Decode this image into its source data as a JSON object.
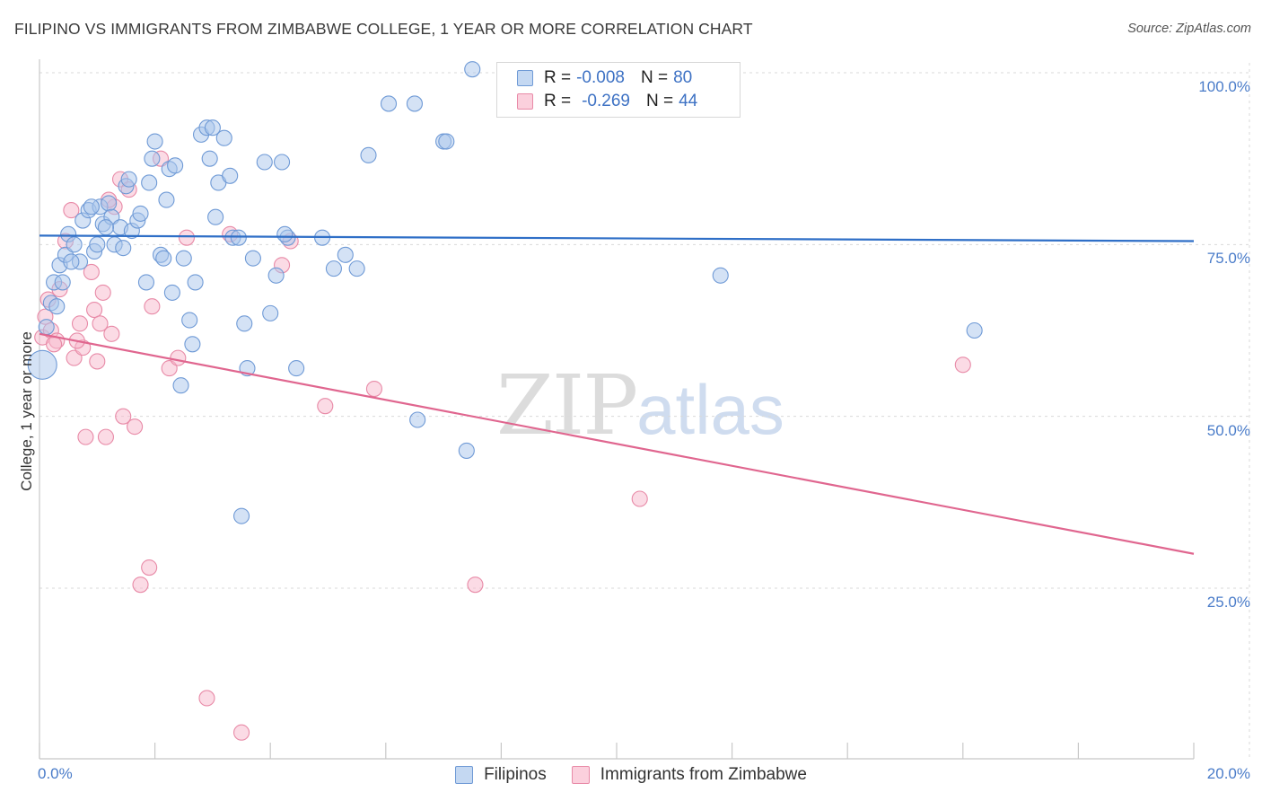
{
  "title": "FILIPINO VS IMMIGRANTS FROM ZIMBABWE COLLEGE, 1 YEAR OR MORE CORRELATION CHART",
  "source": "Source: ZipAtlas.com",
  "watermark": {
    "zip": "ZIP",
    "atlas": "atlas"
  },
  "legend": {
    "rows": [
      {
        "r_label": "R =",
        "r_value": "-0.008",
        "n_label": "N =",
        "n_value": "80"
      },
      {
        "r_label": "R =",
        "r_value": "-0.269",
        "n_label": "N =",
        "n_value": "44"
      }
    ]
  },
  "chart_data": {
    "type": "scatter",
    "title": "FILIPINO VS IMMIGRANTS FROM ZIMBABWE COLLEGE, 1 YEAR OR MORE CORRELATION CHART",
    "xlabel": "",
    "ylabel": "College, 1 year or more",
    "xlim": [
      0,
      20
    ],
    "ylim": [
      0,
      105
    ],
    "x_tick_labels": [
      "0.0%",
      "20.0%"
    ],
    "y_ticks": [
      25,
      50,
      75,
      100
    ],
    "y_tick_labels": [
      "25.0%",
      "50.0%",
      "75.0%",
      "100.0%"
    ],
    "colors": {
      "blue_fill": "#a9c6ec",
      "blue_edge": "#6f9ad6",
      "blue_line": "#2f6fc7",
      "pink_fill": "#f7b8cb",
      "pink_edge": "#e88aa7",
      "pink_line": "#e0668f",
      "grid": "#d9d9d9",
      "tick_text": "#4a7cc9"
    },
    "series": [
      {
        "name": "Filipinos",
        "R": -0.008,
        "N": 80,
        "trend": {
          "x": [
            0,
            20
          ],
          "y": [
            76.3,
            75.5
          ]
        },
        "points": [
          [
            0.05,
            57.5
          ],
          [
            0.12,
            63.0
          ],
          [
            0.2,
            66.5
          ],
          [
            0.25,
            69.5
          ],
          [
            0.35,
            72.0
          ],
          [
            0.45,
            73.5
          ],
          [
            0.5,
            76.5
          ],
          [
            0.6,
            75.0
          ],
          [
            0.7,
            72.5
          ],
          [
            0.75,
            78.5
          ],
          [
            0.85,
            80.0
          ],
          [
            0.95,
            74.0
          ],
          [
            1.0,
            75.0
          ],
          [
            1.05,
            80.5
          ],
          [
            1.1,
            78.0
          ],
          [
            1.2,
            81.0
          ],
          [
            1.25,
            79.0
          ],
          [
            1.3,
            75.0
          ],
          [
            1.4,
            77.5
          ],
          [
            1.5,
            83.5
          ],
          [
            1.55,
            84.5
          ],
          [
            1.6,
            77.0
          ],
          [
            1.7,
            78.5
          ],
          [
            1.75,
            79.5
          ],
          [
            1.85,
            69.5
          ],
          [
            1.9,
            84.0
          ],
          [
            1.95,
            87.5
          ],
          [
            2.0,
            90.0
          ],
          [
            2.1,
            73.5
          ],
          [
            2.2,
            81.5
          ],
          [
            2.25,
            86.0
          ],
          [
            2.3,
            68.0
          ],
          [
            2.35,
            86.5
          ],
          [
            2.45,
            54.5
          ],
          [
            2.5,
            73.0
          ],
          [
            2.6,
            64.0
          ],
          [
            2.65,
            60.5
          ],
          [
            2.7,
            69.5
          ],
          [
            2.8,
            91.0
          ],
          [
            2.9,
            92.0
          ],
          [
            2.95,
            87.5
          ],
          [
            3.0,
            92.0
          ],
          [
            3.05,
            79.0
          ],
          [
            3.1,
            84.0
          ],
          [
            3.2,
            90.5
          ],
          [
            3.3,
            85.0
          ],
          [
            3.35,
            76.0
          ],
          [
            3.5,
            35.5
          ],
          [
            3.55,
            63.5
          ],
          [
            3.6,
            57.0
          ],
          [
            3.7,
            73.0
          ],
          [
            3.9,
            87.0
          ],
          [
            4.0,
            65.0
          ],
          [
            4.1,
            70.5
          ],
          [
            4.2,
            87.0
          ],
          [
            4.3,
            76.0
          ],
          [
            4.45,
            57.0
          ],
          [
            4.9,
            76.0
          ],
          [
            5.1,
            71.5
          ],
          [
            5.3,
            73.5
          ],
          [
            5.5,
            71.5
          ],
          [
            5.7,
            88.0
          ],
          [
            6.05,
            95.5
          ],
          [
            6.5,
            95.5
          ],
          [
            6.55,
            49.5
          ],
          [
            7.0,
            90.0
          ],
          [
            7.05,
            90.0
          ],
          [
            7.4,
            45.0
          ],
          [
            7.5,
            100.5
          ],
          [
            11.8,
            70.5
          ],
          [
            16.2,
            62.5
          ],
          [
            0.3,
            66.0
          ],
          [
            0.55,
            72.5
          ],
          [
            0.9,
            80.5
          ],
          [
            1.15,
            77.5
          ],
          [
            1.45,
            74.5
          ],
          [
            2.15,
            73.0
          ],
          [
            3.45,
            76.0
          ],
          [
            4.25,
            76.5
          ],
          [
            0.4,
            69.5
          ]
        ]
      },
      {
        "name": "Immigrants from Zimbabwe",
        "R": -0.269,
        "N": 44,
        "trend": {
          "x": [
            0,
            20
          ],
          "y": [
            62.0,
            30.0
          ]
        },
        "points": [
          [
            0.05,
            61.5
          ],
          [
            0.1,
            64.5
          ],
          [
            0.15,
            67.0
          ],
          [
            0.2,
            62.5
          ],
          [
            0.3,
            61.0
          ],
          [
            0.35,
            68.5
          ],
          [
            0.45,
            75.5
          ],
          [
            0.55,
            80.0
          ],
          [
            0.6,
            58.5
          ],
          [
            0.7,
            63.5
          ],
          [
            0.75,
            60.0
          ],
          [
            0.8,
            47.0
          ],
          [
            0.9,
            71.0
          ],
          [
            0.95,
            65.5
          ],
          [
            1.0,
            58.0
          ],
          [
            1.05,
            63.5
          ],
          [
            1.1,
            68.0
          ],
          [
            1.15,
            47.0
          ],
          [
            1.25,
            62.0
          ],
          [
            1.3,
            80.5
          ],
          [
            1.4,
            84.5
          ],
          [
            1.45,
            50.0
          ],
          [
            1.55,
            83.0
          ],
          [
            1.65,
            48.5
          ],
          [
            1.75,
            25.5
          ],
          [
            1.9,
            28.0
          ],
          [
            1.95,
            66.0
          ],
          [
            2.1,
            87.5
          ],
          [
            2.25,
            57.0
          ],
          [
            2.4,
            58.5
          ],
          [
            2.55,
            76.0
          ],
          [
            2.9,
            9.0
          ],
          [
            3.3,
            76.5
          ],
          [
            3.5,
            4.0
          ],
          [
            4.2,
            72.0
          ],
          [
            4.35,
            75.5
          ],
          [
            4.95,
            51.5
          ],
          [
            5.8,
            54.0
          ],
          [
            7.55,
            25.5
          ],
          [
            10.4,
            38.0
          ],
          [
            16.0,
            57.5
          ],
          [
            0.25,
            60.5
          ],
          [
            0.65,
            61.0
          ],
          [
            1.2,
            81.5
          ]
        ]
      }
    ]
  },
  "bottom_legend": [
    {
      "label": "Filipinos"
    },
    {
      "label": "Immigrants from Zimbabwe"
    }
  ]
}
